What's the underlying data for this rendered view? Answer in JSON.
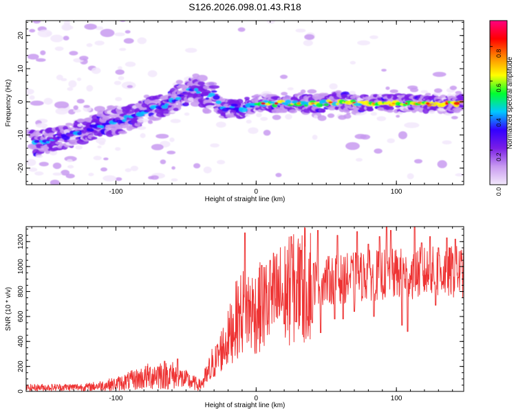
{
  "title": "S126.2026.098.01.43.R18",
  "chart_data": [
    {
      "type": "heatmap",
      "name": "spectrogram",
      "xlabel": "Height of straight line (km)",
      "ylabel": "Frequency (Hz)",
      "xlim": [
        -164,
        148
      ],
      "ylim": [
        -25,
        24.5
      ],
      "xticks": [
        -100,
        0,
        100
      ],
      "xtick_labels": [
        "-100",
        "0",
        "100"
      ],
      "yticks": [
        -20,
        -10,
        0,
        10,
        20
      ],
      "ytick_labels": [
        "-20",
        "-10",
        "0",
        "10",
        "20"
      ],
      "ridge": {
        "note": "approximate dominant frequency track (km, Hz)",
        "x": [
          -155,
          -140,
          -125,
          -110,
          -95,
          -80,
          -65,
          -55,
          -45,
          -35,
          -30,
          -25,
          -20,
          -15,
          -10,
          -5,
          0,
          20,
          40,
          60,
          80,
          100,
          120,
          145
        ],
        "y": [
          -12.5,
          -11,
          -9,
          -7,
          -5.5,
          -3,
          -1,
          1.5,
          4,
          1.5,
          3,
          -2.5,
          -2,
          -1.5,
          -2.5,
          -1,
          -0.5,
          -0.5,
          -0.5,
          0,
          -0.5,
          -0.5,
          -0.5,
          -0.5
        ]
      },
      "colorbar": {
        "label": "Normalized spectral amplitude",
        "range": [
          0,
          0.95
        ],
        "ticks": [
          0.0,
          0.2,
          0.4,
          0.6,
          0.8
        ],
        "tick_labels": [
          "0.0",
          "0.2",
          "0.4",
          "0.6",
          "0.8"
        ],
        "colors": [
          "#f2e8fb",
          "#c89af0",
          "#7a1ee6",
          "#3300ff",
          "#00c8ff",
          "#00ff30",
          "#ffff00",
          "#ff8800",
          "#ff0000",
          "#ff0080"
        ]
      }
    },
    {
      "type": "line",
      "name": "snr",
      "xlabel": "Height of straight line (km)",
      "ylabel": "SNR (10 * v/v)",
      "xlim": [
        -164,
        148
      ],
      "ylim": [
        0,
        1320
      ],
      "xticks": [
        -100,
        0,
        100
      ],
      "xtick_labels": [
        "-100",
        "0",
        "100"
      ],
      "yticks": [
        0,
        200,
        400,
        600,
        800,
        1000,
        1200
      ],
      "ytick_labels": [
        "0",
        "200",
        "400",
        "600",
        "800",
        "1000",
        "1200"
      ],
      "color": "#ee3333",
      "envelope": {
        "note": "approximate mean SNR level along x (km, value)",
        "x": [
          -164,
          -120,
          -100,
          -80,
          -70,
          -60,
          -50,
          -40,
          -35,
          -30,
          -25,
          -20,
          -15,
          -10,
          -5,
          0,
          5,
          10,
          20,
          30,
          40,
          60,
          80,
          100,
          120,
          148
        ],
        "y": [
          30,
          35,
          60,
          110,
          140,
          130,
          90,
          50,
          120,
          220,
          330,
          420,
          560,
          640,
          650,
          640,
          690,
          720,
          790,
          830,
          880,
          900,
          930,
          940,
          950,
          960
        ]
      },
      "spikes": {
        "x": [
          -56,
          -8,
          4,
          10,
          25,
          32,
          44,
          58,
          72,
          80,
          88,
          93,
          96,
          104,
          108,
          113,
          118,
          124,
          130,
          136,
          142
        ],
        "y": [
          260,
          1270,
          1010,
          1050,
          1240,
          1130,
          1290,
          1250,
          1280,
          1180,
          1240,
          1320,
          1290,
          1180,
          1230,
          1320,
          1190,
          1240,
          1150,
          1230,
          1220
        ]
      },
      "dips": {
        "x": [
          20,
          28,
          40,
          46,
          56,
          62,
          70,
          84,
          104,
          108,
          128
        ],
        "y": [
          540,
          560,
          550,
          470,
          580,
          580,
          640,
          600,
          530,
          480,
          690
        ]
      }
    }
  ]
}
